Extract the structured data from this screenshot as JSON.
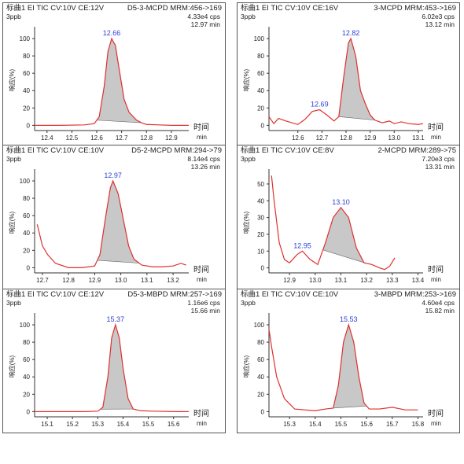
{
  "chart_data": [
    {
      "type": "line",
      "panel_title": "标曲1 EI TIC CV:10V CE:12V",
      "compound": "D5-3-MCPD MRM:456->169",
      "concentration": "3ppb",
      "intensity": "4.33e4 cps",
      "time": "12.97 min",
      "xlabel": "时间",
      "xunit": "min",
      "ylabel": "响应(%)",
      "xlim": [
        12.35,
        12.97
      ],
      "ylim": [
        -6,
        110
      ],
      "xticks": [
        "12.4",
        "12.5",
        "12.6",
        "12.7",
        "12.8",
        "12.9"
      ],
      "yticks": [
        "0",
        "20",
        "40",
        "60",
        "80",
        "100"
      ],
      "peaks": [
        {
          "label": "12.66",
          "x": 12.66,
          "y": 100
        }
      ],
      "fill_range": [
        12.6,
        12.78
      ],
      "line_color": "#e03030",
      "series": [
        {
          "x": [
            12.35,
            12.45,
            12.55,
            12.59,
            12.61,
            12.63,
            12.645,
            12.66,
            12.675,
            12.69,
            12.71,
            12.73,
            12.76,
            12.78,
            12.8,
            12.85,
            12.9,
            12.97
          ],
          "y": [
            0,
            0,
            0.5,
            2,
            10,
            45,
            85,
            100,
            92,
            65,
            30,
            15,
            6,
            3,
            1,
            0.5,
            0,
            0
          ]
        }
      ]
    },
    {
      "type": "line",
      "panel_title": "标曲1 EI TIC CV:10V CE:16V",
      "compound": "3-MCPD MRM:453->169",
      "concentration": "3ppb",
      "intensity": "6.02e3 cps",
      "time": "13.12 min",
      "xlabel": "时间",
      "xunit": "min",
      "ylabel": "响应(%)",
      "xlim": [
        12.48,
        13.12
      ],
      "ylim": [
        -6,
        110
      ],
      "xticks": [
        "12.6",
        "12.7",
        "12.8",
        "12.9",
        "13.0",
        "13.1"
      ],
      "yticks": [
        "0",
        "20",
        "40",
        "60",
        "80",
        "100"
      ],
      "peaks": [
        {
          "label": "12.82",
          "x": 12.82,
          "y": 100
        },
        {
          "label": "12.69",
          "x": 12.69,
          "y": 18
        }
      ],
      "fill_range": [
        12.77,
        12.92
      ],
      "line_color": "#e03030",
      "series": [
        {
          "x": [
            12.48,
            12.5,
            12.52,
            12.55,
            12.6,
            12.63,
            12.66,
            12.69,
            12.72,
            12.75,
            12.77,
            12.79,
            12.81,
            12.82,
            12.84,
            12.86,
            12.88,
            12.9,
            12.92,
            12.95,
            12.98,
            13.0,
            13.03,
            13.06,
            13.1,
            13.12
          ],
          "y": [
            10,
            2,
            8,
            5,
            1,
            7,
            16,
            18,
            12,
            5,
            10,
            55,
            95,
            100,
            80,
            40,
            25,
            12,
            6,
            3,
            5,
            2,
            4,
            2,
            1,
            2
          ]
        }
      ]
    },
    {
      "type": "line",
      "panel_title": "标曲1 EI TIC CV:10V CE:10V",
      "compound": "D5-2-MCPD MRM:294->79",
      "concentration": "3ppb",
      "intensity": "8.14e4 cps",
      "time": "13.26 min",
      "xlabel": "时间",
      "xunit": "min",
      "ylabel": "响应(%)",
      "xlim": [
        12.67,
        13.26
      ],
      "ylim": [
        -6,
        110
      ],
      "xticks": [
        "12.7",
        "12.8",
        "12.9",
        "13.0",
        "13.1",
        "13.2"
      ],
      "yticks": [
        "0",
        "20",
        "40",
        "60",
        "80",
        "100"
      ],
      "peaks": [
        {
          "label": "12.97",
          "x": 12.97,
          "y": 100
        }
      ],
      "fill_range": [
        12.91,
        13.07
      ],
      "line_color": "#e03030",
      "series": [
        {
          "x": [
            12.68,
            12.7,
            12.72,
            12.75,
            12.8,
            12.85,
            12.9,
            12.92,
            12.94,
            12.96,
            12.97,
            12.99,
            13.01,
            13.03,
            13.05,
            13.08,
            13.12,
            13.16,
            13.2,
            13.23,
            13.25
          ],
          "y": [
            50,
            25,
            15,
            5,
            0,
            0,
            2,
            15,
            55,
            92,
            100,
            85,
            55,
            25,
            10,
            3,
            1,
            1,
            2,
            5,
            3
          ]
        }
      ]
    },
    {
      "type": "line",
      "panel_title": "标曲1 EI TIC CV:10V CE:8V",
      "compound": "2-MCPD MRM:289->75",
      "concentration": "3ppb",
      "intensity": "7.20e3 cps",
      "time": "13.31 min",
      "xlabel": "时间",
      "xunit": "min",
      "ylabel": "响应(%)",
      "xlim": [
        12.82,
        13.42
      ],
      "ylim": [
        -3,
        57
      ],
      "xticks": [
        "12.9",
        "13.0",
        "13.1",
        "13.2",
        "13.3",
        "13.4"
      ],
      "yticks": [
        "0",
        "10",
        "20",
        "30",
        "40",
        "50"
      ],
      "peaks": [
        {
          "label": "13.10",
          "x": 13.1,
          "y": 36
        },
        {
          "label": "12.95",
          "x": 12.95,
          "y": 10
        }
      ],
      "fill_range": [
        13.03,
        13.2
      ],
      "line_color": "#e03030",
      "series": [
        {
          "x": [
            12.83,
            12.84,
            12.86,
            12.88,
            12.9,
            12.93,
            12.95,
            12.98,
            13.01,
            13.04,
            13.07,
            13.1,
            13.13,
            13.16,
            13.19,
            13.22,
            13.25,
            13.27,
            13.29,
            13.31
          ],
          "y": [
            55,
            40,
            15,
            5,
            3,
            8,
            10,
            5,
            2,
            15,
            30,
            36,
            30,
            12,
            3,
            2,
            0,
            -1,
            1,
            6
          ]
        }
      ]
    },
    {
      "type": "line",
      "panel_title": "标曲1 EI TIC CV:10V CE:12V",
      "compound": "D5-3-MBPD MRM:257->169",
      "concentration": "3ppb",
      "intensity": "1.16e6 cps",
      "time": "15.66 min",
      "xlabel": "时间",
      "xunit": "min",
      "ylabel": "响应(%)",
      "xlim": [
        15.05,
        15.66
      ],
      "ylim": [
        -6,
        110
      ],
      "xticks": [
        "15.1",
        "15.2",
        "15.3",
        "15.4",
        "15.5",
        "15.6"
      ],
      "yticks": [
        "0",
        "20",
        "40",
        "60",
        "80",
        "100"
      ],
      "peaks": [
        {
          "label": "15.37",
          "x": 15.37,
          "y": 100
        }
      ],
      "fill_range": [
        15.31,
        15.44
      ],
      "line_color": "#e03030",
      "series": [
        {
          "x": [
            15.05,
            15.15,
            15.25,
            15.3,
            15.32,
            15.34,
            15.355,
            15.37,
            15.385,
            15.4,
            15.42,
            15.44,
            15.47,
            15.52,
            15.6,
            15.66
          ],
          "y": [
            0,
            0,
            0,
            0.5,
            5,
            40,
            85,
            100,
            85,
            50,
            15,
            3,
            1,
            0.5,
            0,
            0
          ]
        }
      ]
    },
    {
      "type": "line",
      "panel_title": "标曲1 EI TIC CV:10V CE:10V",
      "compound": "3-MBPD MRM:253->169",
      "concentration": "3ppb",
      "intensity": "4.60e4 cps",
      "time": "15.82 min",
      "xlabel": "时间",
      "xunit": "min",
      "ylabel": "响应(%)",
      "xlim": [
        15.22,
        15.82
      ],
      "ylim": [
        -6,
        110
      ],
      "xticks": [
        "15.3",
        "15.4",
        "15.5",
        "15.6",
        "15.7",
        "15.8"
      ],
      "yticks": [
        "0",
        "20",
        "40",
        "60",
        "80",
        "100"
      ],
      "peaks": [
        {
          "label": "15.53",
          "x": 15.53,
          "y": 100
        }
      ],
      "fill_range": [
        15.47,
        15.6
      ],
      "line_color": "#e03030",
      "series": [
        {
          "x": [
            15.22,
            15.23,
            15.25,
            15.28,
            15.32,
            15.36,
            15.4,
            15.44,
            15.47,
            15.49,
            15.51,
            15.53,
            15.55,
            15.57,
            15.59,
            15.61,
            15.65,
            15.7,
            15.75,
            15.8
          ],
          "y": [
            95,
            75,
            40,
            15,
            3,
            2,
            1,
            3,
            4,
            30,
            80,
            100,
            80,
            40,
            10,
            3,
            3,
            5,
            2,
            2
          ]
        }
      ]
    }
  ]
}
